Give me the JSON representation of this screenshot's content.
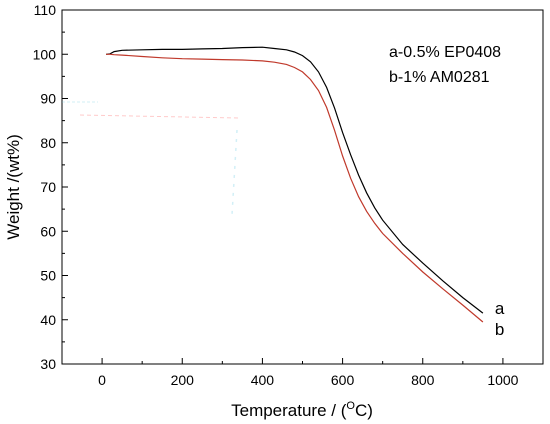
{
  "chart_data": {
    "type": "line",
    "title": "",
    "xlabel": "Temperature / (",
    "xlabel_sup": "O",
    "xlabel_unit": "C)",
    "ylabel": "Weight /(wt%)",
    "xlim": [
      -100,
      1100
    ],
    "ylim": [
      30,
      110
    ],
    "xticks": [
      0,
      200,
      400,
      600,
      800,
      1000
    ],
    "yticks": [
      30,
      40,
      50,
      60,
      70,
      80,
      90,
      100,
      110
    ],
    "grid": false,
    "legend": {
      "placement": "top-right",
      "entries": [
        "a-0.5% EP0408",
        "b-1% AM0281"
      ]
    },
    "series": [
      {
        "name": "a",
        "color": "#000000",
        "x": [
          10,
          20,
          30,
          50,
          100,
          150,
          200,
          250,
          300,
          350,
          400,
          430,
          460,
          480,
          500,
          520,
          540,
          560,
          580,
          600,
          620,
          640,
          660,
          680,
          700,
          750,
          800,
          850,
          900,
          950
        ],
        "y": [
          100.0,
          100.1,
          100.6,
          100.9,
          101.0,
          101.1,
          101.1,
          101.2,
          101.3,
          101.5,
          101.6,
          101.3,
          101.0,
          100.5,
          99.7,
          98.3,
          96.0,
          92.5,
          87.8,
          82.3,
          77.3,
          72.7,
          68.7,
          65.3,
          62.5,
          57.0,
          52.8,
          48.8,
          45.0,
          41.5
        ]
      },
      {
        "name": "b",
        "color": "#c0392b",
        "x": [
          10,
          20,
          30,
          50,
          100,
          150,
          200,
          250,
          300,
          350,
          400,
          430,
          460,
          480,
          500,
          520,
          540,
          560,
          580,
          600,
          620,
          640,
          660,
          680,
          700,
          750,
          800,
          850,
          900,
          950
        ],
        "y": [
          100.0,
          100.0,
          99.9,
          99.8,
          99.5,
          99.2,
          99.0,
          98.9,
          98.8,
          98.7,
          98.5,
          98.2,
          97.7,
          97.0,
          96.0,
          94.3,
          91.8,
          88.0,
          82.8,
          77.0,
          72.0,
          67.8,
          64.5,
          61.8,
          59.5,
          55.0,
          50.8,
          47.0,
          43.3,
          39.5
        ]
      }
    ],
    "end_labels": [
      "a",
      "b"
    ]
  }
}
